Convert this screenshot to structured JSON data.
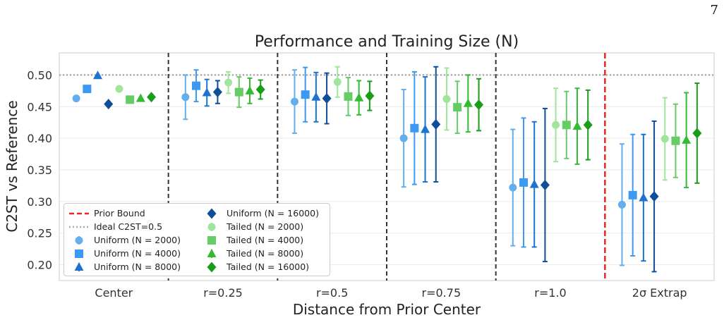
{
  "page_number": "7",
  "chart_data": {
    "type": "scatter",
    "title": "Performance and Training Size (N)",
    "xlabel": "Distance from Prior Center",
    "ylabel": "C2ST vs Reference",
    "categories": [
      "Center",
      "r=0.25",
      "r=0.5",
      "r=0.75",
      "r=1.0",
      "2σ Extrap"
    ],
    "ylim": [
      0.175,
      0.535
    ],
    "yticks": [
      "0.20",
      "0.25",
      "0.30",
      "0.35",
      "0.40",
      "0.45",
      "0.50"
    ],
    "ytick_values": [
      0.2,
      0.25,
      0.3,
      0.35,
      0.4,
      0.45,
      0.5
    ],
    "ideal_line": {
      "label": "Ideal C2ST=0.5",
      "value": 0.5,
      "color": "#aaaaaa"
    },
    "prior_bound": {
      "label": "Prior Bound",
      "after_category": 4,
      "color": "#e8262a"
    },
    "grid": true,
    "legend_position": "lower-left",
    "series": [
      {
        "name": "Uniform (N = 2000)",
        "color": "#64aeee",
        "marker": "circle",
        "values": [
          0.463,
          0.465,
          0.458,
          0.4,
          0.322,
          0.295
        ],
        "err": [
          0,
          0.035,
          0.05,
          0.077,
          0.092,
          0.096
        ]
      },
      {
        "name": "Uniform (N = 4000)",
        "color": "#3d99f2",
        "marker": "square",
        "values": [
          0.478,
          0.483,
          0.469,
          0.416,
          0.33,
          0.31
        ],
        "err": [
          0,
          0.025,
          0.043,
          0.089,
          0.102,
          0.096
        ]
      },
      {
        "name": "Uniform (N = 8000)",
        "color": "#1d73d1",
        "marker": "triangle",
        "values": [
          0.499,
          0.472,
          0.465,
          0.414,
          0.327,
          0.306
        ],
        "err": [
          0,
          0.021,
          0.039,
          0.083,
          0.099,
          0.1
        ]
      },
      {
        "name": "Uniform (N = 16000)",
        "color": "#0f4f99",
        "marker": "diamond",
        "values": [
          0.454,
          0.473,
          0.463,
          0.422,
          0.326,
          0.308
        ],
        "err": [
          0,
          0.018,
          0.04,
          0.091,
          0.121,
          0.119
        ]
      },
      {
        "name": "Tailed (N = 2000)",
        "color": "#9fe59a",
        "marker": "circle",
        "values": [
          0.478,
          0.488,
          0.489,
          0.462,
          0.421,
          0.399
        ],
        "err": [
          0,
          0.017,
          0.024,
          0.049,
          0.058,
          0.065
        ]
      },
      {
        "name": "Tailed (N = 4000)",
        "color": "#66cc66",
        "marker": "square",
        "values": [
          0.461,
          0.473,
          0.466,
          0.449,
          0.421,
          0.396
        ],
        "err": [
          0,
          0.024,
          0.03,
          0.041,
          0.053,
          0.058
        ]
      },
      {
        "name": "Tailed (N = 8000)",
        "color": "#33bb33",
        "marker": "triangle",
        "values": [
          0.463,
          0.475,
          0.464,
          0.455,
          0.419,
          0.397
        ],
        "err": [
          0,
          0.02,
          0.027,
          0.045,
          0.06,
          0.075
        ]
      },
      {
        "name": "Tailed (N = 16000)",
        "color": "#1a9e1a",
        "marker": "diamond",
        "values": [
          0.465,
          0.477,
          0.467,
          0.453,
          0.421,
          0.408
        ],
        "err": [
          0,
          0.015,
          0.023,
          0.041,
          0.055,
          0.079
        ]
      }
    ]
  }
}
